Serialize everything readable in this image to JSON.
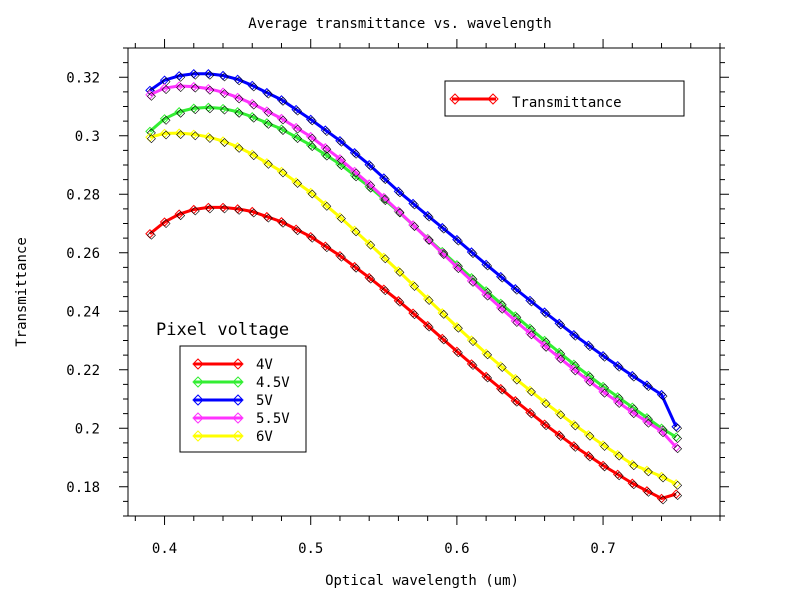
{
  "chart_data": {
    "type": "line",
    "title": "Average transmittance vs. wavelength",
    "xlabel": "Optical wavelength (um)",
    "ylabel": "Transmittance",
    "xlim": [
      0.375,
      0.78
    ],
    "ylim": [
      0.17,
      0.33
    ],
    "x_ticks": [
      0.4,
      0.5,
      0.6,
      0.7
    ],
    "x_tick_labels": [
      "0.4",
      "0.5",
      "0.6",
      "0.7"
    ],
    "y_ticks": [
      0.18,
      0.2,
      0.22,
      0.24,
      0.26,
      0.28,
      0.3,
      0.32
    ],
    "y_tick_labels": [
      "0.18",
      "0.2",
      "0.22",
      "0.24",
      "0.26",
      "0.28",
      "0.3",
      "0.32"
    ],
    "grid": false,
    "marker": "diamond",
    "top_legend": {
      "label": "Transmittance",
      "color": "#ff0000",
      "placement": "top-right"
    },
    "legend": {
      "title": "Pixel voltage",
      "placement": "lower-left"
    },
    "series": [
      {
        "name": "4V",
        "color": "#ff0000",
        "x": [
          0.39,
          0.4,
          0.41,
          0.42,
          0.43,
          0.44,
          0.45,
          0.46,
          0.48,
          0.5,
          0.52,
          0.54,
          0.56,
          0.58,
          0.6,
          0.62,
          0.64,
          0.66,
          0.68,
          0.7,
          0.72,
          0.74,
          0.75
        ],
        "y": [
          0.2665,
          0.2705,
          0.2732,
          0.2748,
          0.2755,
          0.2755,
          0.275,
          0.2741,
          0.2706,
          0.2655,
          0.259,
          0.2515,
          0.2436,
          0.2351,
          0.2263,
          0.2177,
          0.2094,
          0.2014,
          0.194,
          0.1873,
          0.1812,
          0.176,
          0.1775
        ]
      },
      {
        "name": "4.5V",
        "color": "#33ee33",
        "x": [
          0.39,
          0.4,
          0.41,
          0.42,
          0.43,
          0.44,
          0.45,
          0.46,
          0.48,
          0.5,
          0.52,
          0.54,
          0.56,
          0.58,
          0.6,
          0.62,
          0.64,
          0.66,
          0.68,
          0.7,
          0.72,
          0.74,
          0.75
        ],
        "y": [
          0.3015,
          0.3058,
          0.3082,
          0.3094,
          0.3097,
          0.3093,
          0.3082,
          0.3065,
          0.3023,
          0.2968,
          0.2903,
          0.2826,
          0.2741,
          0.2649,
          0.2559,
          0.247,
          0.2384,
          0.23,
          0.2219,
          0.2143,
          0.2072,
          0.2,
          0.197
        ]
      },
      {
        "name": "5V",
        "color": "#0000ff",
        "x": [
          0.39,
          0.4,
          0.41,
          0.42,
          0.43,
          0.44,
          0.45,
          0.46,
          0.48,
          0.5,
          0.52,
          0.54,
          0.56,
          0.58,
          0.6,
          0.62,
          0.64,
          0.66,
          0.68,
          0.7,
          0.72,
          0.74,
          0.75
        ],
        "y": [
          0.3155,
          0.319,
          0.3205,
          0.3212,
          0.3212,
          0.3206,
          0.3193,
          0.3172,
          0.3123,
          0.3056,
          0.2983,
          0.2901,
          0.281,
          0.2727,
          0.2645,
          0.256,
          0.2477,
          0.2397,
          0.232,
          0.2248,
          0.218,
          0.2115,
          0.2005
        ]
      },
      {
        "name": "5.5V",
        "color": "#ff33ff",
        "x": [
          0.39,
          0.4,
          0.41,
          0.42,
          0.43,
          0.44,
          0.45,
          0.46,
          0.48,
          0.5,
          0.52,
          0.54,
          0.56,
          0.58,
          0.6,
          0.62,
          0.64,
          0.66,
          0.68,
          0.7,
          0.72,
          0.74,
          0.75
        ],
        "y": [
          0.314,
          0.3163,
          0.317,
          0.3168,
          0.3161,
          0.3149,
          0.3131,
          0.311,
          0.3059,
          0.2997,
          0.2921,
          0.2835,
          0.2743,
          0.2647,
          0.2551,
          0.2457,
          0.2367,
          0.2282,
          0.2201,
          0.2125,
          0.2055,
          0.199,
          0.1935
        ]
      },
      {
        "name": "6V",
        "color": "#ffff00",
        "x": [
          0.39,
          0.4,
          0.41,
          0.42,
          0.43,
          0.44,
          0.45,
          0.46,
          0.48,
          0.5,
          0.52,
          0.54,
          0.56,
          0.58,
          0.6,
          0.62,
          0.64,
          0.66,
          0.68,
          0.7,
          0.72,
          0.74,
          0.75
        ],
        "y": [
          0.2995,
          0.3008,
          0.3009,
          0.3005,
          0.2996,
          0.2982,
          0.2962,
          0.2937,
          0.2878,
          0.2806,
          0.2722,
          0.2631,
          0.2538,
          0.2442,
          0.2347,
          0.2256,
          0.217,
          0.2089,
          0.2013,
          0.1943,
          0.1877,
          0.1835,
          0.181
        ]
      }
    ]
  }
}
